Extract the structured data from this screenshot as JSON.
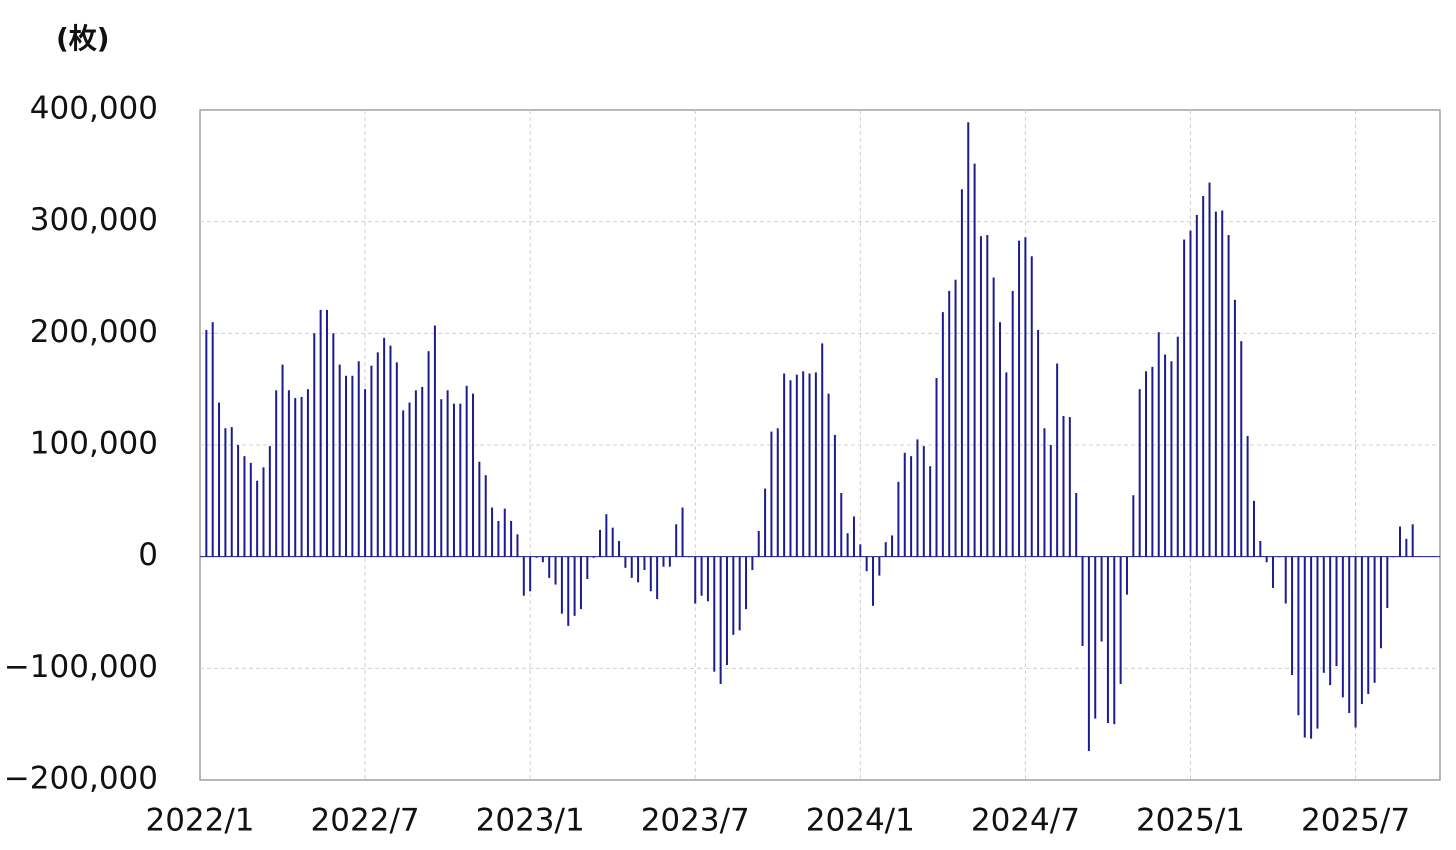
{
  "chart_data": {
    "type": "bar",
    "y_label": "(枚)",
    "x": [
      1,
      2,
      3,
      4,
      5,
      6,
      7,
      8,
      9,
      10,
      11,
      12,
      13,
      14,
      15,
      16,
      17,
      18,
      19,
      20,
      21,
      22,
      23,
      24,
      25,
      26,
      27,
      28,
      29,
      30,
      31,
      32,
      33,
      34,
      35,
      36,
      37,
      38,
      39,
      40,
      41,
      42,
      43,
      44,
      45,
      46,
      47,
      48,
      49,
      50,
      51,
      52,
      53,
      54,
      55,
      56,
      57,
      58,
      59,
      60,
      61,
      62,
      63,
      64,
      65,
      66,
      67,
      68,
      69,
      70,
      71,
      72,
      73,
      74,
      75,
      76,
      77,
      78,
      79,
      80,
      81,
      82,
      83,
      84,
      85,
      86,
      87,
      88,
      89,
      90,
      91,
      92,
      93,
      94,
      95,
      96,
      97,
      98,
      99,
      100,
      101,
      102,
      103,
      104,
      105,
      106,
      107,
      108,
      109,
      110,
      111,
      112,
      113,
      114,
      115,
      116,
      117,
      118,
      119,
      120,
      121,
      122,
      123,
      124,
      125,
      126,
      127,
      128,
      129,
      130,
      131,
      132,
      133,
      134,
      135,
      136,
      137,
      138,
      139,
      140,
      141,
      142,
      143,
      144,
      145,
      146,
      147,
      148,
      149,
      150,
      151,
      152,
      153,
      154,
      155,
      156,
      157,
      158,
      159,
      160,
      161,
      162,
      163,
      164,
      165,
      166,
      167,
      168,
      169,
      170,
      171,
      172,
      173,
      174,
      175,
      176,
      177,
      178,
      179,
      180,
      181,
      182,
      183,
      184,
      185,
      186,
      187,
      188,
      189,
      190,
      191
    ],
    "values": [
      203000,
      210000,
      138000,
      115000,
      116000,
      100000,
      90000,
      84000,
      68000,
      80000,
      99000,
      149000,
      172000,
      149000,
      142000,
      143000,
      150000,
      200000,
      221000,
      221000,
      200000,
      172000,
      162000,
      162000,
      175000,
      150000,
      171000,
      183000,
      196000,
      189000,
      174000,
      131000,
      138000,
      149000,
      152000,
      184000,
      207000,
      141000,
      149000,
      137000,
      137000,
      153000,
      146000,
      85000,
      73000,
      44000,
      32000,
      43000,
      32000,
      20000,
      -35000,
      -31000,
      -1000,
      -5000,
      -19000,
      -25000,
      -51000,
      -62000,
      -53000,
      -47000,
      -20000,
      -1000,
      24000,
      38000,
      26000,
      14000,
      -10000,
      -19000,
      -23000,
      -12000,
      -31000,
      -38000,
      -9000,
      -9000,
      29000,
      44000,
      0,
      -42000,
      -35000,
      -40000,
      -103000,
      -114000,
      -97000,
      -70000,
      -66000,
      -47000,
      -12000,
      23000,
      61000,
      112000,
      115000,
      164000,
      158000,
      163000,
      166000,
      164000,
      165000,
      191000,
      146000,
      109000,
      57000,
      21000,
      36000,
      11000,
      -13000,
      -44000,
      -17000,
      13000,
      19000,
      67000,
      93000,
      90000,
      105000,
      99000,
      81000,
      160000,
      219000,
      238000,
      248000,
      329000,
      389000,
      352000,
      287000,
      288000,
      250000,
      210000,
      165000,
      238000,
      283000,
      286000,
      269000,
      203000,
      115000,
      100000,
      173000,
      126000,
      125000,
      57000,
      -80000,
      -174000,
      -145000,
      -76000,
      -149000,
      -150000,
      -114000,
      -34000,
      55000,
      150000,
      166000,
      170000,
      201000,
      181000,
      175000,
      197000,
      284000,
      292000,
      306000,
      323000,
      335000,
      309000,
      310000,
      288000,
      230000,
      193000,
      108000,
      50000,
      14000,
      -5000,
      -28000,
      0,
      -42000,
      -106000,
      -142000,
      -162000,
      -163000,
      -154000,
      -104000,
      -115000,
      -98000,
      -126000,
      -140000,
      -153000,
      -132000,
      -123000,
      -113000,
      -82000,
      -46000,
      0,
      27000,
      16000,
      29000
    ],
    "color": "#1c1c8f",
    "xlim": [
      0,
      195.3
    ],
    "xticks": [
      {
        "value": 0,
        "label": "2022/1"
      },
      {
        "value": 26,
        "label": "2022/7"
      },
      {
        "value": 52,
        "label": "2023/1"
      },
      {
        "value": 78,
        "label": "2023/7"
      },
      {
        "value": 104,
        "label": "2024/1"
      },
      {
        "value": 130,
        "label": "2024/7"
      },
      {
        "value": 156,
        "label": "2025/1"
      },
      {
        "value": 182,
        "label": "2025/7"
      }
    ],
    "ylim": [
      -200000,
      400000
    ],
    "yticks": [
      {
        "value": -200000,
        "label": "−200,000"
      },
      {
        "value": -100000,
        "label": "−100,000"
      },
      0,
      {
        "value": 100000,
        "label": "100,000"
      },
      {
        "value": 200000,
        "label": "200,000"
      },
      {
        "value": 300000,
        "label": "300,000"
      },
      {
        "value": 400000,
        "label": "400,000"
      }
    ],
    "negative_tick_color": "#e8141c",
    "grid": true
  }
}
